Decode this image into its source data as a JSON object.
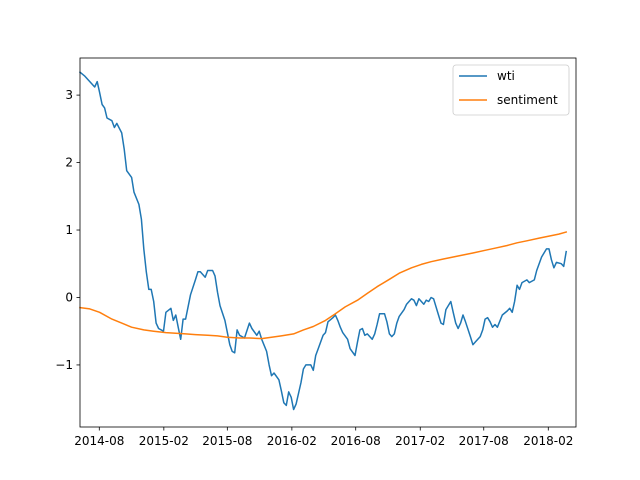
{
  "chart_data": {
    "type": "line",
    "title": "",
    "xlabel": "",
    "ylabel": "",
    "x_range": [
      "2014-06-07",
      "2018-04-21"
    ],
    "ylim": [
      -1.92,
      3.55
    ],
    "grid": false,
    "legend_position": "top-right",
    "x_ticks": [
      {
        "label": "2014-08",
        "date": "2014-08-01"
      },
      {
        "label": "2015-02",
        "date": "2015-02-01"
      },
      {
        "label": "2015-08",
        "date": "2015-08-01"
      },
      {
        "label": "2016-02",
        "date": "2016-02-01"
      },
      {
        "label": "2016-08",
        "date": "2016-08-01"
      },
      {
        "label": "2017-02",
        "date": "2017-02-01"
      },
      {
        "label": "2017-08",
        "date": "2017-08-01"
      },
      {
        "label": "2018-02",
        "date": "2018-02-01"
      }
    ],
    "y_ticks": [
      {
        "label": "−1",
        "value": -1
      },
      {
        "label": "0",
        "value": 0
      },
      {
        "label": "1",
        "value": 1
      },
      {
        "label": "2",
        "value": 2
      },
      {
        "label": "3",
        "value": 3
      }
    ],
    "series": [
      {
        "name": "wti",
        "color": "#1f77b4",
        "points": [
          [
            "2014-06-07",
            3.34
          ],
          [
            "2014-06-21",
            3.28
          ],
          [
            "2014-07-05",
            3.2
          ],
          [
            "2014-07-19",
            3.12
          ],
          [
            "2014-07-26",
            3.2
          ],
          [
            "2014-08-02",
            3.04
          ],
          [
            "2014-08-09",
            2.86
          ],
          [
            "2014-08-16",
            2.81
          ],
          [
            "2014-08-23",
            2.66
          ],
          [
            "2014-09-06",
            2.62
          ],
          [
            "2014-09-13",
            2.52
          ],
          [
            "2014-09-20",
            2.58
          ],
          [
            "2014-10-04",
            2.44
          ],
          [
            "2014-10-11",
            2.2
          ],
          [
            "2014-10-18",
            1.88
          ],
          [
            "2014-11-01",
            1.78
          ],
          [
            "2014-11-08",
            1.56
          ],
          [
            "2014-11-22",
            1.38
          ],
          [
            "2014-11-29",
            1.16
          ],
          [
            "2014-12-06",
            0.72
          ],
          [
            "2014-12-13",
            0.38
          ],
          [
            "2014-12-20",
            0.12
          ],
          [
            "2014-12-27",
            0.12
          ],
          [
            "2015-01-03",
            -0.06
          ],
          [
            "2015-01-10",
            -0.38
          ],
          [
            "2015-01-17",
            -0.46
          ],
          [
            "2015-01-31",
            -0.5
          ],
          [
            "2015-02-07",
            -0.22
          ],
          [
            "2015-02-21",
            -0.16
          ],
          [
            "2015-02-28",
            -0.34
          ],
          [
            "2015-03-07",
            -0.26
          ],
          [
            "2015-03-14",
            -0.44
          ],
          [
            "2015-03-21",
            -0.62
          ],
          [
            "2015-03-28",
            -0.32
          ],
          [
            "2015-04-04",
            -0.32
          ],
          [
            "2015-04-18",
            0.04
          ],
          [
            "2015-05-02",
            0.26
          ],
          [
            "2015-05-09",
            0.38
          ],
          [
            "2015-05-16",
            0.38
          ],
          [
            "2015-05-30",
            0.3
          ],
          [
            "2015-06-06",
            0.4
          ],
          [
            "2015-06-20",
            0.4
          ],
          [
            "2015-06-27",
            0.32
          ],
          [
            "2015-07-04",
            0.08
          ],
          [
            "2015-07-11",
            -0.12
          ],
          [
            "2015-07-25",
            -0.34
          ],
          [
            "2015-08-08",
            -0.7
          ],
          [
            "2015-08-15",
            -0.8
          ],
          [
            "2015-08-22",
            -0.82
          ],
          [
            "2015-08-29",
            -0.48
          ],
          [
            "2015-09-05",
            -0.56
          ],
          [
            "2015-09-19",
            -0.6
          ],
          [
            "2015-10-03",
            -0.38
          ],
          [
            "2015-10-10",
            -0.46
          ],
          [
            "2015-10-24",
            -0.56
          ],
          [
            "2015-10-31",
            -0.5
          ],
          [
            "2015-11-07",
            -0.62
          ],
          [
            "2015-11-21",
            -0.8
          ],
          [
            "2015-11-28",
            -1.0
          ],
          [
            "2015-12-05",
            -1.16
          ],
          [
            "2015-12-12",
            -1.12
          ],
          [
            "2015-12-26",
            -1.22
          ],
          [
            "2016-01-02",
            -1.38
          ],
          [
            "2016-01-09",
            -1.56
          ],
          [
            "2016-01-16",
            -1.6
          ],
          [
            "2016-01-23",
            -1.4
          ],
          [
            "2016-01-30",
            -1.48
          ],
          [
            "2016-02-06",
            -1.66
          ],
          [
            "2016-02-13",
            -1.58
          ],
          [
            "2016-02-27",
            -1.26
          ],
          [
            "2016-03-05",
            -1.06
          ],
          [
            "2016-03-12",
            -1.0
          ],
          [
            "2016-03-26",
            -1.0
          ],
          [
            "2016-04-02",
            -1.08
          ],
          [
            "2016-04-09",
            -0.86
          ],
          [
            "2016-04-16",
            -0.76
          ],
          [
            "2016-04-30",
            -0.56
          ],
          [
            "2016-05-07",
            -0.52
          ],
          [
            "2016-05-14",
            -0.36
          ],
          [
            "2016-05-28",
            -0.3
          ],
          [
            "2016-06-04",
            -0.26
          ],
          [
            "2016-06-11",
            -0.34
          ],
          [
            "2016-06-18",
            -0.44
          ],
          [
            "2016-06-25",
            -0.52
          ],
          [
            "2016-07-09",
            -0.62
          ],
          [
            "2016-07-16",
            -0.76
          ],
          [
            "2016-07-30",
            -0.86
          ],
          [
            "2016-08-06",
            -0.66
          ],
          [
            "2016-08-13",
            -0.48
          ],
          [
            "2016-08-20",
            -0.46
          ],
          [
            "2016-08-27",
            -0.56
          ],
          [
            "2016-09-03",
            -0.54
          ],
          [
            "2016-09-17",
            -0.62
          ],
          [
            "2016-09-24",
            -0.54
          ],
          [
            "2016-10-01",
            -0.4
          ],
          [
            "2016-10-08",
            -0.24
          ],
          [
            "2016-10-22",
            -0.24
          ],
          [
            "2016-10-29",
            -0.36
          ],
          [
            "2016-11-05",
            -0.54
          ],
          [
            "2016-11-12",
            -0.58
          ],
          [
            "2016-11-19",
            -0.54
          ],
          [
            "2016-11-26",
            -0.38
          ],
          [
            "2016-12-03",
            -0.28
          ],
          [
            "2016-12-17",
            -0.18
          ],
          [
            "2016-12-24",
            -0.1
          ],
          [
            "2017-01-07",
            -0.02
          ],
          [
            "2017-01-14",
            -0.04
          ],
          [
            "2017-01-21",
            -0.12
          ],
          [
            "2017-01-28",
            -0.02
          ],
          [
            "2017-02-11",
            -0.1
          ],
          [
            "2017-02-18",
            -0.04
          ],
          [
            "2017-02-25",
            -0.06
          ],
          [
            "2017-03-04",
            0.0
          ],
          [
            "2017-03-11",
            -0.02
          ],
          [
            "2017-03-25",
            -0.26
          ],
          [
            "2017-04-01",
            -0.38
          ],
          [
            "2017-04-08",
            -0.4
          ],
          [
            "2017-04-15",
            -0.18
          ],
          [
            "2017-04-29",
            -0.06
          ],
          [
            "2017-05-06",
            -0.22
          ],
          [
            "2017-05-13",
            -0.38
          ],
          [
            "2017-05-20",
            -0.46
          ],
          [
            "2017-05-27",
            -0.38
          ],
          [
            "2017-06-03",
            -0.26
          ],
          [
            "2017-06-10",
            -0.36
          ],
          [
            "2017-06-24",
            -0.58
          ],
          [
            "2017-07-01",
            -0.7
          ],
          [
            "2017-07-08",
            -0.66
          ],
          [
            "2017-07-22",
            -0.58
          ],
          [
            "2017-07-29",
            -0.48
          ],
          [
            "2017-08-05",
            -0.32
          ],
          [
            "2017-08-12",
            -0.3
          ],
          [
            "2017-08-19",
            -0.36
          ],
          [
            "2017-08-26",
            -0.44
          ],
          [
            "2017-09-02",
            -0.4
          ],
          [
            "2017-09-09",
            -0.44
          ],
          [
            "2017-09-23",
            -0.26
          ],
          [
            "2017-10-07",
            -0.2
          ],
          [
            "2017-10-14",
            -0.16
          ],
          [
            "2017-10-21",
            -0.22
          ],
          [
            "2017-10-28",
            -0.06
          ],
          [
            "2017-11-04",
            0.18
          ],
          [
            "2017-11-11",
            0.12
          ],
          [
            "2017-11-18",
            0.22
          ],
          [
            "2017-12-02",
            0.26
          ],
          [
            "2017-12-09",
            0.22
          ],
          [
            "2017-12-23",
            0.26
          ],
          [
            "2017-12-30",
            0.4
          ],
          [
            "2018-01-13",
            0.6
          ],
          [
            "2018-01-27",
            0.72
          ],
          [
            "2018-02-03",
            0.72
          ],
          [
            "2018-02-10",
            0.56
          ],
          [
            "2018-02-17",
            0.44
          ],
          [
            "2018-02-24",
            0.52
          ],
          [
            "2018-03-10",
            0.5
          ],
          [
            "2018-03-17",
            0.46
          ],
          [
            "2018-03-24",
            0.68
          ]
        ]
      },
      {
        "name": "sentiment",
        "color": "#ff7f0e",
        "points": [
          [
            "2014-06-07",
            -0.15
          ],
          [
            "2014-07-05",
            -0.17
          ],
          [
            "2014-08-02",
            -0.22
          ],
          [
            "2014-09-06",
            -0.32
          ],
          [
            "2014-10-04",
            -0.38
          ],
          [
            "2014-11-01",
            -0.44
          ],
          [
            "2014-12-06",
            -0.48
          ],
          [
            "2015-01-03",
            -0.5
          ],
          [
            "2015-02-07",
            -0.52
          ],
          [
            "2015-03-07",
            -0.53
          ],
          [
            "2015-04-04",
            -0.54
          ],
          [
            "2015-05-02",
            -0.55
          ],
          [
            "2015-06-06",
            -0.56
          ],
          [
            "2015-07-04",
            -0.57
          ],
          [
            "2015-08-01",
            -0.59
          ],
          [
            "2015-09-05",
            -0.6
          ],
          [
            "2015-10-03",
            -0.6
          ],
          [
            "2015-11-07",
            -0.61
          ],
          [
            "2015-12-05",
            -0.59
          ],
          [
            "2016-01-02",
            -0.57
          ],
          [
            "2016-02-06",
            -0.54
          ],
          [
            "2016-03-05",
            -0.48
          ],
          [
            "2016-04-02",
            -0.43
          ],
          [
            "2016-05-07",
            -0.34
          ],
          [
            "2016-06-04",
            -0.24
          ],
          [
            "2016-07-02",
            -0.14
          ],
          [
            "2016-08-06",
            -0.04
          ],
          [
            "2016-09-03",
            0.06
          ],
          [
            "2016-10-01",
            0.16
          ],
          [
            "2016-11-05",
            0.27
          ],
          [
            "2016-12-03",
            0.36
          ],
          [
            "2017-01-07",
            0.44
          ],
          [
            "2017-02-04",
            0.49
          ],
          [
            "2017-03-04",
            0.53
          ],
          [
            "2017-04-08",
            0.57
          ],
          [
            "2017-05-06",
            0.6
          ],
          [
            "2017-06-03",
            0.63
          ],
          [
            "2017-07-01",
            0.66
          ],
          [
            "2017-08-05",
            0.7
          ],
          [
            "2017-09-02",
            0.73
          ],
          [
            "2017-10-07",
            0.77
          ],
          [
            "2017-11-04",
            0.81
          ],
          [
            "2017-12-02",
            0.84
          ],
          [
            "2018-01-06",
            0.88
          ],
          [
            "2018-02-03",
            0.91
          ],
          [
            "2018-03-03",
            0.94
          ],
          [
            "2018-03-24",
            0.97
          ]
        ]
      }
    ]
  }
}
